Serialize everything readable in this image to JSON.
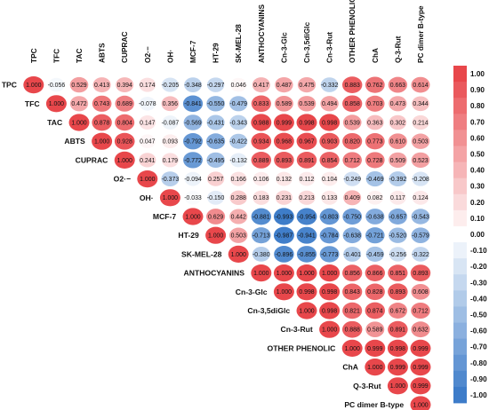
{
  "chart_data": {
    "type": "heatmap",
    "subtype": "correlation-matrix-upper-triangle",
    "labels": [
      "TPC",
      "TFC",
      "TAC",
      "ABTS",
      "CUPRAC",
      "O2·−",
      "OH·",
      "MCF-7",
      "HT-29",
      "SK-MEL-28",
      "ANTHOCYANINS",
      "Cn-3-Glc",
      "Cn-3,5diGlc",
      "Cn-3-Rut",
      "OTHER PHENOLIC",
      "ChA",
      "Q-3-Rut",
      "PC dimer B-type"
    ],
    "values": [
      [
        "1.000",
        "-0.056",
        "0.529",
        "0.413",
        "0.394",
        "0.174",
        "-0.205",
        "-0.348",
        "-0.297",
        "0.046",
        "0.417",
        "0.487",
        "0.475",
        "-0.332",
        "0.883",
        "0.762",
        "0.663",
        "0.614"
      ],
      [
        "",
        "1.000",
        "0.472",
        "0.743",
        "0.689",
        "-0.078",
        "0.356",
        "-0.841",
        "-0.550",
        "-0.479",
        "0.833",
        "0.589",
        "0.539",
        "0.494",
        "0.858",
        "0.703",
        "0.473",
        "0.344"
      ],
      [
        "",
        "",
        "1.000",
        "0.878",
        "0.804",
        "0.147",
        "-0.087",
        "-0.569",
        "-0.431",
        "-0.343",
        "0.988",
        "0.999",
        "0.998",
        "0.998",
        "0.539",
        "0.363",
        "0.302",
        "0.214"
      ],
      [
        "",
        "",
        "",
        "1.000",
        "0.928",
        "0.047",
        "0.093",
        "-0.792",
        "-0.635",
        "-0.422",
        "0.934",
        "0.968",
        "0.967",
        "0.903",
        "0.820",
        "0.773",
        "0.610",
        "0.503"
      ],
      [
        "",
        "",
        "",
        "",
        "1.000",
        "0.241",
        "0.179",
        "-0.772",
        "-0.495",
        "-0.132",
        "0.889",
        "0.893",
        "0.891",
        "0.854",
        "0.712",
        "0.728",
        "0.509",
        "0.523"
      ],
      [
        "",
        "",
        "",
        "",
        "",
        "1.000",
        "-0.373",
        "-0.094",
        "0.257",
        "0.166",
        "0.106",
        "0.132",
        "0.112",
        "0.104",
        "-0.249",
        "-0.469",
        "-0.392",
        "-0.208"
      ],
      [
        "",
        "",
        "",
        "",
        "",
        "",
        "1.000",
        "-0.033",
        "-0.150",
        "0.288",
        "0.183",
        "0.231",
        "0.213",
        "0.133",
        "0.409",
        "0.082",
        "0.117",
        "0.124"
      ],
      [
        "",
        "",
        "",
        "",
        "",
        "",
        "",
        "1.000",
        "0.629",
        "0.442",
        "-0.881",
        "-0.993",
        "-0.954",
        "-0.803",
        "-0.750",
        "-0.638",
        "-0.657",
        "-0.543"
      ],
      [
        "",
        "",
        "",
        "",
        "",
        "",
        "",
        "",
        "1.000",
        "0.503",
        "-0.713",
        "-0.987",
        "-0.941",
        "-0.784",
        "-0.638",
        "-0.721",
        "-0.520",
        "-0.579"
      ],
      [
        "",
        "",
        "",
        "",
        "",
        "",
        "",
        "",
        "",
        "1.000",
        "-0.380",
        "-0.896",
        "-0.855",
        "-0.773",
        "-0.401",
        "-0.459",
        "-0.256",
        "-0.322"
      ],
      [
        "",
        "",
        "",
        "",
        "",
        "",
        "",
        "",
        "",
        "",
        "1.000",
        "1.000",
        "1.000",
        "1.000",
        "0.856",
        "0.866",
        "0.851",
        "0.893"
      ],
      [
        "",
        "",
        "",
        "",
        "",
        "",
        "",
        "",
        "",
        "",
        "",
        "1.000",
        "0.998",
        "0.998",
        "0.843",
        "0.828",
        "0.893",
        "0.608"
      ],
      [
        "",
        "",
        "",
        "",
        "",
        "",
        "",
        "",
        "",
        "",
        "",
        "",
        "1.000",
        "0.998",
        "0.821",
        "0.874",
        "0.672",
        "0.712"
      ],
      [
        "",
        "",
        "",
        "",
        "",
        "",
        "",
        "",
        "",
        "",
        "",
        "",
        "",
        "1.000",
        "0.888",
        "0.589",
        "0.891",
        "0.632"
      ],
      [
        "",
        "",
        "",
        "",
        "",
        "",
        "",
        "",
        "",
        "",
        "",
        "",
        "",
        "",
        "1.000",
        "0.999",
        "0.998",
        "0.999"
      ],
      [
        "",
        "",
        "",
        "",
        "",
        "",
        "",
        "",
        "",
        "",
        "",
        "",
        "",
        "",
        "",
        "1.000",
        "0.999",
        "0.999"
      ],
      [
        "",
        "",
        "",
        "",
        "",
        "",
        "",
        "",
        "",
        "",
        "",
        "",
        "",
        "",
        "",
        "",
        "1.000",
        "0.999"
      ],
      [
        "",
        "",
        "",
        "",
        "",
        "",
        "",
        "",
        "",
        "",
        "",
        "",
        "",
        "",
        "",
        "",
        "",
        "1.000"
      ]
    ],
    "colorbar": {
      "ticks": [
        "1.00",
        "0.90",
        "0.80",
        "0.70",
        "0.60",
        "0.50",
        "0.40",
        "0.30",
        "0.20",
        "0.10",
        "0.00",
        "-0.10",
        "-0.20",
        "-0.30",
        "-0.40",
        "-0.50",
        "-0.60",
        "-0.70",
        "-0.80",
        "-0.90",
        "-1.00"
      ],
      "range": [
        -1,
        1
      ],
      "positive_color": "#e8474b",
      "negative_color": "#3d7cc9",
      "neutral_color": "#ffffff"
    }
  }
}
